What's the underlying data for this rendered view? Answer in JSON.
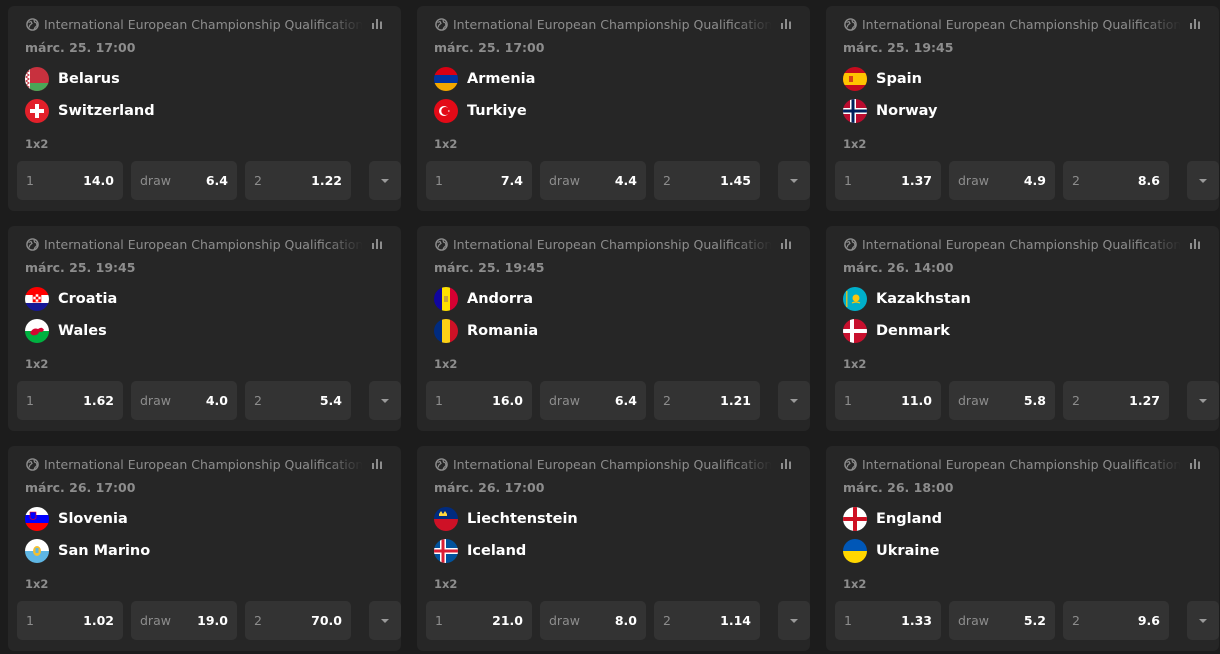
{
  "matches": [
    {
      "league": "International European Championship Qualification",
      "time": "márc. 25. 17:00",
      "home": {
        "name": "Belarus",
        "flag": "belarus-flag"
      },
      "away": {
        "name": "Switzerland",
        "flag": "switzerland-flag"
      },
      "market": "1x2",
      "odds": [
        {
          "label": "1",
          "value": "14.0"
        },
        {
          "label": "draw",
          "value": "6.4"
        },
        {
          "label": "2",
          "value": "1.22"
        }
      ]
    },
    {
      "league": "International European Championship Qualification",
      "time": "márc. 25. 17:00",
      "home": {
        "name": "Armenia",
        "flag": "armenia-flag"
      },
      "away": {
        "name": "Turkiye",
        "flag": "turkiye-flag"
      },
      "market": "1x2",
      "odds": [
        {
          "label": "1",
          "value": "7.4"
        },
        {
          "label": "draw",
          "value": "4.4"
        },
        {
          "label": "2",
          "value": "1.45"
        }
      ]
    },
    {
      "league": "International European Championship Qualification",
      "time": "márc. 25. 19:45",
      "home": {
        "name": "Spain",
        "flag": "spain-flag"
      },
      "away": {
        "name": "Norway",
        "flag": "norway-flag"
      },
      "market": "1x2",
      "odds": [
        {
          "label": "1",
          "value": "1.37"
        },
        {
          "label": "draw",
          "value": "4.9"
        },
        {
          "label": "2",
          "value": "8.6"
        }
      ]
    },
    {
      "league": "International European Championship Qualification",
      "time": "márc. 25. 19:45",
      "home": {
        "name": "Croatia",
        "flag": "croatia-flag"
      },
      "away": {
        "name": "Wales",
        "flag": "wales-flag"
      },
      "market": "1x2",
      "odds": [
        {
          "label": "1",
          "value": "1.62"
        },
        {
          "label": "draw",
          "value": "4.0"
        },
        {
          "label": "2",
          "value": "5.4"
        }
      ]
    },
    {
      "league": "International European Championship Qualification",
      "time": "márc. 25. 19:45",
      "home": {
        "name": "Andorra",
        "flag": "andorra-flag"
      },
      "away": {
        "name": "Romania",
        "flag": "romania-flag"
      },
      "market": "1x2",
      "odds": [
        {
          "label": "1",
          "value": "16.0"
        },
        {
          "label": "draw",
          "value": "6.4"
        },
        {
          "label": "2",
          "value": "1.21"
        }
      ]
    },
    {
      "league": "International European Championship Qualification",
      "time": "márc. 26. 14:00",
      "home": {
        "name": "Kazakhstan",
        "flag": "kazakhstan-flag"
      },
      "away": {
        "name": "Denmark",
        "flag": "denmark-flag"
      },
      "market": "1x2",
      "odds": [
        {
          "label": "1",
          "value": "11.0"
        },
        {
          "label": "draw",
          "value": "5.8"
        },
        {
          "label": "2",
          "value": "1.27"
        }
      ]
    },
    {
      "league": "International European Championship Qualification",
      "time": "márc. 26. 17:00",
      "home": {
        "name": "Slovenia",
        "flag": "slovenia-flag"
      },
      "away": {
        "name": "San Marino",
        "flag": "san-marino-flag"
      },
      "market": "1x2",
      "odds": [
        {
          "label": "1",
          "value": "1.02"
        },
        {
          "label": "draw",
          "value": "19.0"
        },
        {
          "label": "2",
          "value": "70.0"
        }
      ]
    },
    {
      "league": "International European Championship Qualification",
      "time": "márc. 26. 17:00",
      "home": {
        "name": "Liechtenstein",
        "flag": "liechtenstein-flag"
      },
      "away": {
        "name": "Iceland",
        "flag": "iceland-flag"
      },
      "market": "1x2",
      "odds": [
        {
          "label": "1",
          "value": "21.0"
        },
        {
          "label": "draw",
          "value": "8.0"
        },
        {
          "label": "2",
          "value": "1.14"
        }
      ]
    },
    {
      "league": "International European Championship Qualification",
      "time": "márc. 26. 18:00",
      "home": {
        "name": "England",
        "flag": "england-flag"
      },
      "away": {
        "name": "Ukraine",
        "flag": "ukraine-flag"
      },
      "market": "1x2",
      "odds": [
        {
          "label": "1",
          "value": "1.33"
        },
        {
          "label": "draw",
          "value": "5.2"
        },
        {
          "label": "2",
          "value": "9.6"
        }
      ]
    }
  ],
  "icons": {
    "sport": "globe-icon",
    "stats": "stats-icon",
    "expand": "chevron-down-icon"
  },
  "colors": {
    "page_bg": "#1c1c1c",
    "card_bg": "#262626",
    "odd_bg": "#333333",
    "muted_text": "#8d8d8d"
  }
}
